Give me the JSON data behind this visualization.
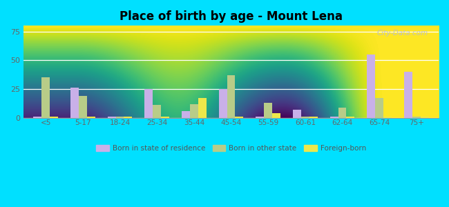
{
  "title": "Place of birth by age - Mount Lena",
  "categories": [
    "<5",
    "5-17",
    "18-24",
    "25-34",
    "35-44",
    "45-54",
    "55-59",
    "60-61",
    "62-64",
    "65-74",
    "75+"
  ],
  "born_in_state": [
    1,
    26,
    1,
    25,
    6,
    25,
    1,
    7,
    1,
    55,
    40
  ],
  "born_other_state": [
    35,
    19,
    1,
    11,
    12,
    37,
    13,
    1,
    9,
    17,
    1
  ],
  "foreign_born": [
    1,
    1,
    1,
    1,
    17,
    1,
    4,
    1,
    1,
    1,
    1
  ],
  "color_state": "#c9b0e8",
  "color_other": "#b8cc88",
  "color_foreign": "#ede84a",
  "ylim": [
    0,
    80
  ],
  "yticks": [
    0,
    25,
    50,
    75
  ],
  "outer_bg": "#00e0ff",
  "watermark": "City-Data.com"
}
